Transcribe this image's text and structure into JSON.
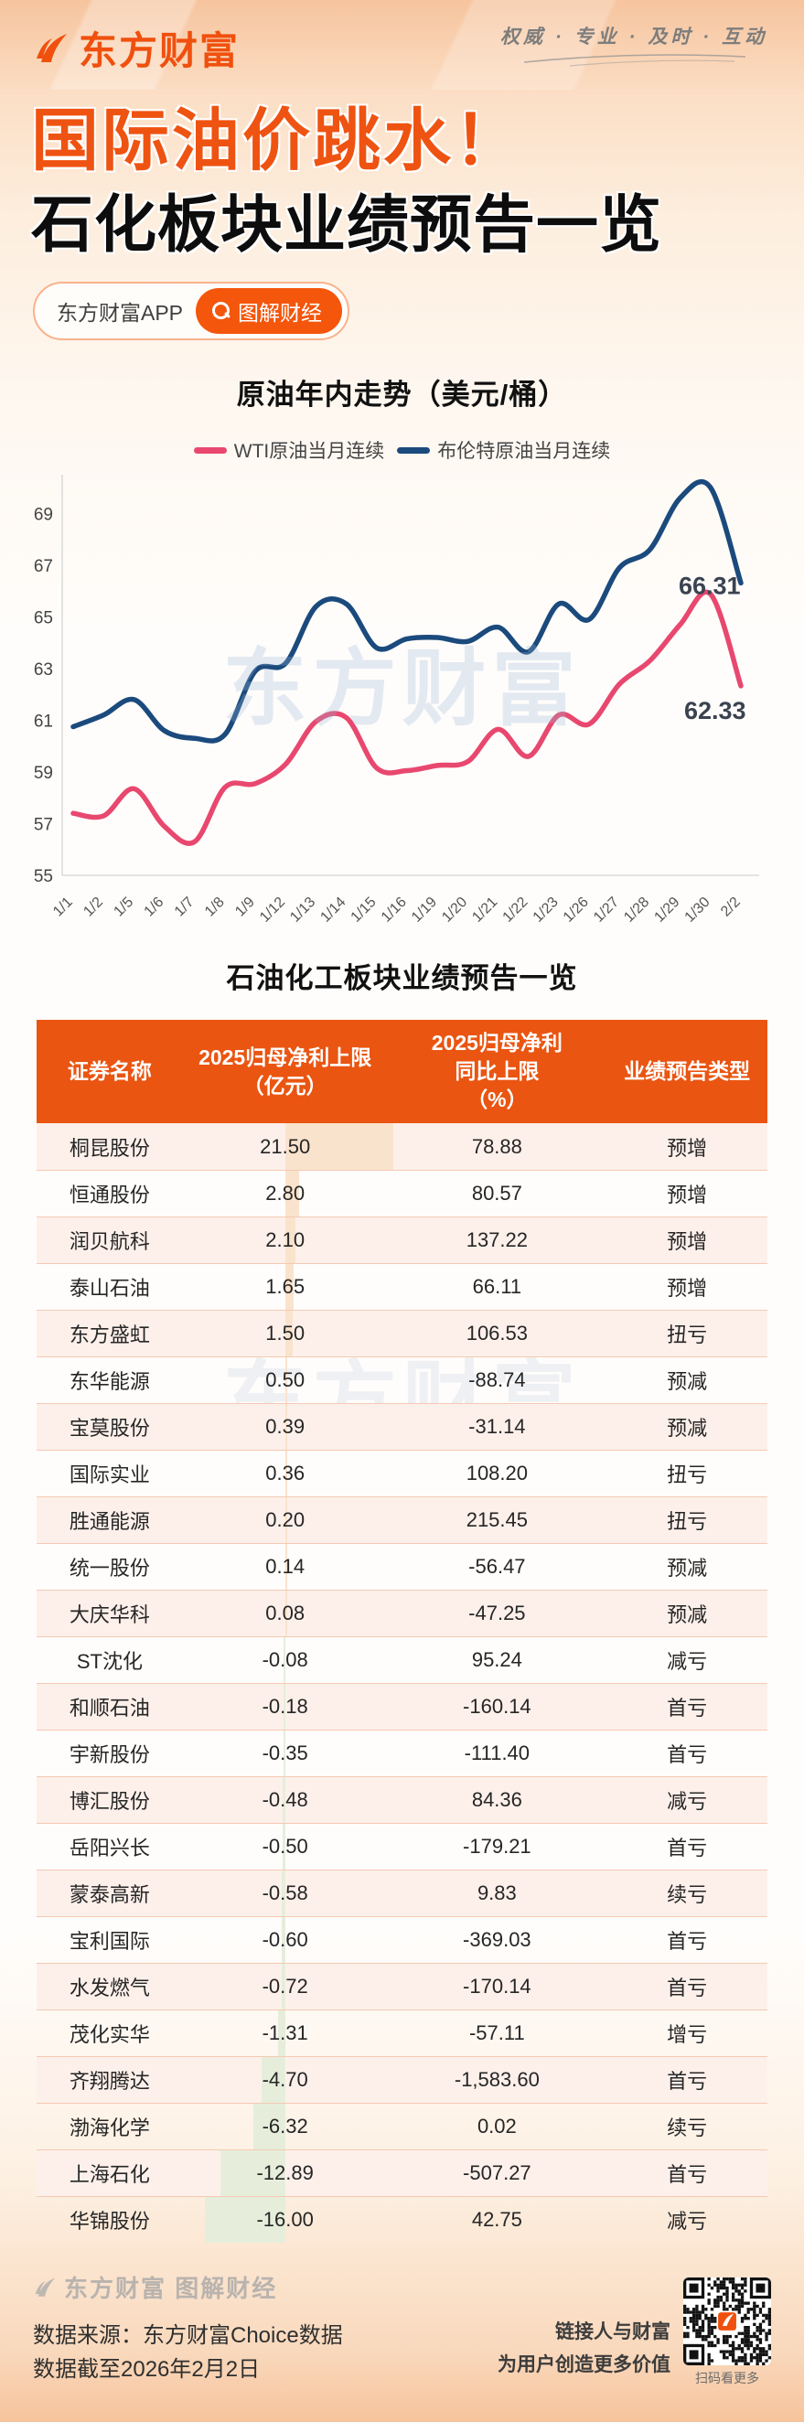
{
  "banner": {
    "brand": "东方财富",
    "slogan": "权威 · 专业 · 及时 · 互动"
  },
  "title": {
    "line1": "国际油价跳水！",
    "line2": "石化板块业绩预告一览"
  },
  "tags": {
    "app_label": "东方财富APP",
    "search_label": "图解财经"
  },
  "watermark": "东方财富",
  "chart_data": {
    "type": "line",
    "title": "原油年内走势（美元/桶）",
    "categories": [
      "1/1",
      "1/2",
      "1/5",
      "1/6",
      "1/7",
      "1/8",
      "1/9",
      "1/12",
      "1/13",
      "1/14",
      "1/15",
      "1/16",
      "1/19",
      "1/20",
      "1/21",
      "1/22",
      "1/23",
      "1/26",
      "1/27",
      "1/28",
      "1/29",
      "1/30",
      "2/2"
    ],
    "series": [
      {
        "name": "WTI原油当月连续",
        "color": "#e8486f",
        "values": [
          57.4,
          57.3,
          58.35,
          56.9,
          56.3,
          58.4,
          58.55,
          59.3,
          60.95,
          61.1,
          59.15,
          59.05,
          59.25,
          59.4,
          60.65,
          59.6,
          61.2,
          60.85,
          62.4,
          63.3,
          64.7,
          65.88,
          62.33
        ],
        "end_label": "62.33"
      },
      {
        "name": "布伦特原油当月连续",
        "color": "#1b4a7d",
        "values": [
          60.75,
          61.2,
          61.8,
          60.6,
          60.3,
          60.45,
          62.9,
          63.2,
          65.4,
          65.5,
          63.8,
          64.15,
          64.2,
          64.05,
          64.6,
          63.65,
          65.5,
          64.9,
          66.9,
          67.6,
          69.6,
          70.0,
          66.31
        ],
        "end_label": "66.31"
      }
    ],
    "ylim": [
      55,
      70.5
    ],
    "yticks": [
      55,
      57,
      59,
      61,
      63,
      65,
      67,
      69
    ],
    "legend_position": "top",
    "grid": false
  },
  "table": {
    "title": "石油化工板块业绩预告一览",
    "headers": [
      [
        "证券名称"
      ],
      [
        "2025归母净利上限",
        "（亿元）"
      ],
      [
        "2025归母净利",
        "同比上限",
        "（%）"
      ],
      [
        "业绩预告类型"
      ]
    ],
    "rows": [
      {
        "name": "桐昆股份",
        "profit": "21.50",
        "yoy": "78.88",
        "type": "预增"
      },
      {
        "name": "恒通股份",
        "profit": "2.80",
        "yoy": "80.57",
        "type": "预增"
      },
      {
        "name": "润贝航科",
        "profit": "2.10",
        "yoy": "137.22",
        "type": "预增"
      },
      {
        "name": "泰山石油",
        "profit": "1.65",
        "yoy": "66.11",
        "type": "预增"
      },
      {
        "name": "东方盛虹",
        "profit": "1.50",
        "yoy": "106.53",
        "type": "扭亏"
      },
      {
        "name": "东华能源",
        "profit": "0.50",
        "yoy": "-88.74",
        "type": "预减"
      },
      {
        "name": "宝莫股份",
        "profit": "0.39",
        "yoy": "-31.14",
        "type": "预减"
      },
      {
        "name": "国际实业",
        "profit": "0.36",
        "yoy": "108.20",
        "type": "扭亏"
      },
      {
        "name": "胜通能源",
        "profit": "0.20",
        "yoy": "215.45",
        "type": "扭亏"
      },
      {
        "name": "统一股份",
        "profit": "0.14",
        "yoy": "-56.47",
        "type": "预减"
      },
      {
        "name": "大庆华科",
        "profit": "0.08",
        "yoy": "-47.25",
        "type": "预减"
      },
      {
        "name": "ST沈化",
        "profit": "-0.08",
        "yoy": "95.24",
        "type": "减亏"
      },
      {
        "name": "和顺石油",
        "profit": "-0.18",
        "yoy": "-160.14",
        "type": "首亏"
      },
      {
        "name": "宇新股份",
        "profit": "-0.35",
        "yoy": "-111.40",
        "type": "首亏"
      },
      {
        "name": "博汇股份",
        "profit": "-0.48",
        "yoy": "84.36",
        "type": "减亏"
      },
      {
        "name": "岳阳兴长",
        "profit": "-0.50",
        "yoy": "-179.21",
        "type": "首亏"
      },
      {
        "name": "蒙泰高新",
        "profit": "-0.58",
        "yoy": "9.83",
        "type": "续亏"
      },
      {
        "name": "宝利国际",
        "profit": "-0.60",
        "yoy": "-369.03",
        "type": "首亏"
      },
      {
        "name": "水发燃气",
        "profit": "-0.72",
        "yoy": "-170.14",
        "type": "首亏"
      },
      {
        "name": "茂化实华",
        "profit": "-1.31",
        "yoy": "-57.11",
        "type": "增亏"
      },
      {
        "name": "齐翔腾达",
        "profit": "-4.70",
        "yoy": "-1,583.60",
        "type": "首亏"
      },
      {
        "name": "渤海化学",
        "profit": "-6.32",
        "yoy": "0.02",
        "type": "续亏"
      },
      {
        "name": "上海石化",
        "profit": "-12.89",
        "yoy": "-507.27",
        "type": "首亏"
      },
      {
        "name": "华锦股份",
        "profit": "-16.00",
        "yoy": "42.75",
        "type": "减亏"
      }
    ]
  },
  "footer": {
    "brand_line": "东方财富 图解财经",
    "source": "数据来源：东方财富Choice数据",
    "cutoff": "数据截至2026年2月2日",
    "slogan1": "链接人与财富",
    "slogan2": "为用户创造更多价值",
    "qr_caption": "扫码看更多"
  },
  "colors": {
    "accent": "#ef5311",
    "table_header": "#ea5511",
    "wti": "#e8486f",
    "brent": "#1b4a7d",
    "bar_positive": "#fae3cd",
    "bar_negative": "#e6eedb"
  }
}
